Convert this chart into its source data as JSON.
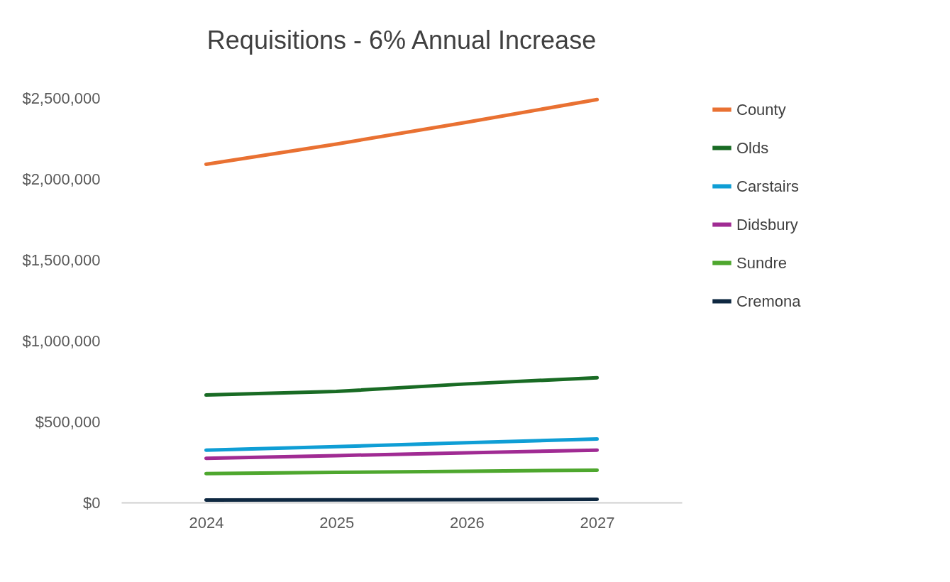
{
  "chart_data": {
    "type": "line",
    "title": "Requisitions - 6% Annual Increase",
    "categories": [
      "2024",
      "2025",
      "2026",
      "2027"
    ],
    "series": [
      {
        "name": "County",
        "color": "#e97132",
        "values": [
          2090000,
          2215000,
          2350000,
          2490000
        ]
      },
      {
        "name": "Olds",
        "color": "#196b24",
        "values": [
          664000,
          686000,
          733000,
          771000
        ]
      },
      {
        "name": "Carstairs",
        "color": "#0f9ed5",
        "values": [
          324000,
          345000,
          370000,
          392000
        ]
      },
      {
        "name": "Didsbury",
        "color": "#a02b93",
        "values": [
          273000,
          290000,
          307000,
          324000
        ]
      },
      {
        "name": "Sundre",
        "color": "#4ea72e",
        "values": [
          179000,
          186000,
          193000,
          200000
        ]
      },
      {
        "name": "Cremona",
        "color": "#0e2841",
        "values": [
          15000,
          16000,
          17000,
          20000
        ]
      }
    ],
    "ylim": [
      0,
      2500000
    ],
    "yticks": [
      {
        "value": 0,
        "label": "$0"
      },
      {
        "value": 500000,
        "label": "$500,000"
      },
      {
        "value": 1000000,
        "label": "$1,000,000"
      },
      {
        "value": 1500000,
        "label": "$1,500,000"
      },
      {
        "value": 2000000,
        "label": "$2,000,000"
      },
      {
        "value": 2500000,
        "label": "$2,500,000"
      }
    ],
    "grid": false,
    "legend": "right",
    "marker": "none",
    "line_style": "solid"
  }
}
